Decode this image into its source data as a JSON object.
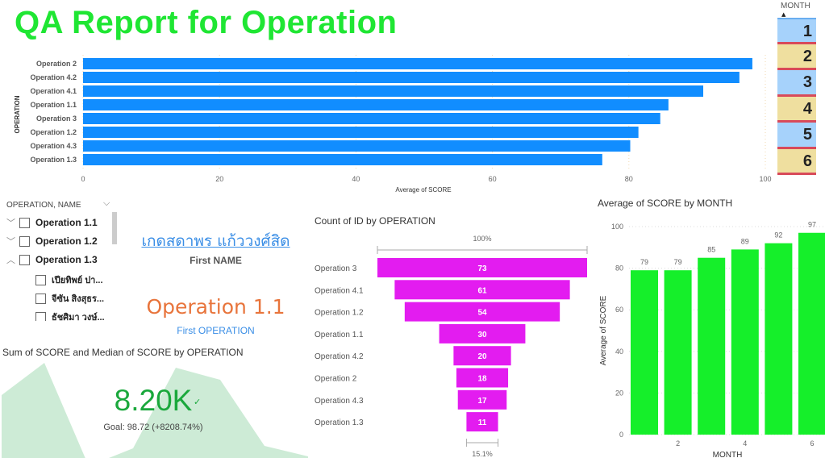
{
  "title": "QA Report for Operation",
  "month_slicer": {
    "header": "MONTH",
    "sort_icon": "▲",
    "items": [
      "1",
      "2",
      "3",
      "4",
      "5",
      "6"
    ],
    "colors": [
      "#a6d2fb",
      "#efdf9f"
    ],
    "divider_color": "#d84a5a"
  },
  "tree_slicer": {
    "header": "OPERATION, NAME",
    "items": [
      {
        "label": "Operation 1.1",
        "expanded": false,
        "level": 0
      },
      {
        "label": "Operation 1.2",
        "expanded": false,
        "level": 0
      },
      {
        "label": "Operation 1.3",
        "expanded": true,
        "level": 0
      },
      {
        "label": "เปียทิพย์ ปา...",
        "level": 1
      },
      {
        "label": "จีซัน สิงสุธร...",
        "level": 1
      },
      {
        "label": "ธัชศิมา วงษ์...",
        "level": 1
      }
    ]
  },
  "card_name": {
    "value": "เกดสดาพร แก้ววงศ์สิด",
    "label": "First NAME"
  },
  "card_operation": {
    "value": "Operation 1.1",
    "label": "First OPERATION"
  },
  "kpi": {
    "title": "Sum of SCORE and Median of SCORE by OPERATION",
    "value": "8.20K",
    "goal": "Goal: 98.72 (+8208.74%)",
    "check": "✓"
  },
  "chart_data": [
    {
      "type": "bar",
      "orientation": "horizontal",
      "title": "",
      "categories": [
        "Operation 2",
        "Operation 4.2",
        "Operation 4.1",
        "Operation 1.1",
        "Operation 3",
        "Operation 1.2",
        "Operation 4.3",
        "Operation 1.3"
      ],
      "values": [
        98.1,
        96.2,
        90.9,
        85.8,
        84.6,
        81.4,
        80.2,
        76.1
      ],
      "xlabel": "Average of SCORE",
      "ylabel": "OPERATION",
      "xlim": [
        0,
        100
      ],
      "ticks": [
        "0",
        "20",
        "40",
        "60",
        "80",
        "100"
      ],
      "color": "#118dff"
    },
    {
      "type": "bar",
      "subtype": "funnel",
      "title": "Count of ID by OPERATION",
      "categories": [
        "Operation 3",
        "Operation 4.1",
        "Operation 1.2",
        "Operation 1.1",
        "Operation 4.2",
        "Operation 2",
        "Operation 4.3",
        "Operation 1.3"
      ],
      "values": [
        73,
        61,
        54,
        30,
        20,
        18,
        17,
        11
      ],
      "top_label": "100%",
      "bottom_label": "15.1%",
      "color": "#e31cf0"
    },
    {
      "type": "bar",
      "title": "Average of SCORE by MONTH",
      "categories": [
        "1",
        "2",
        "3",
        "4",
        "5",
        "6"
      ],
      "values": [
        79,
        79,
        85,
        89,
        92,
        97
      ],
      "xlabel": "MONTH",
      "ylabel": "Average of SCORE",
      "ylim": [
        0,
        100
      ],
      "yticks": [
        "0",
        "20",
        "40",
        "60",
        "80",
        "100"
      ],
      "xticks": [
        "2",
        "4",
        "6"
      ],
      "color": "#15ef2a"
    }
  ]
}
